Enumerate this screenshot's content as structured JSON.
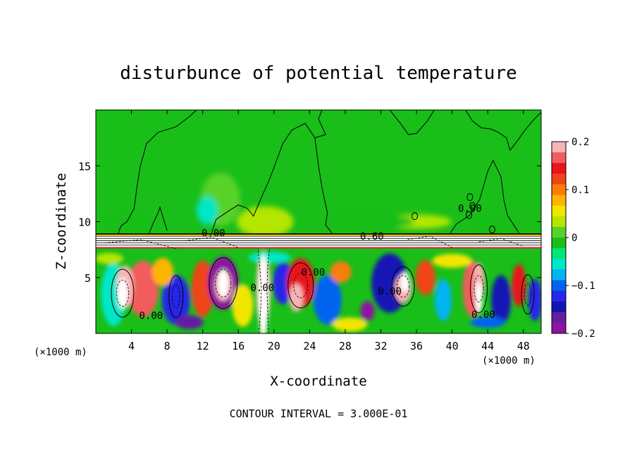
{
  "chart_data": {
    "type": "heatmap",
    "title": "disturbunce of potential temperature",
    "xlabel": "X-coordinate",
    "ylabel": "Z-coordinate",
    "x_unit_label": "(×1000 m)",
    "x_unit_label_right": "(×1000 m)",
    "footer": "CONTOUR INTERVAL = 3.000E-01",
    "xlim": [
      0,
      50
    ],
    "ylim": [
      0,
      20
    ],
    "x_ticks": [
      4,
      8,
      12,
      16,
      20,
      24,
      28,
      32,
      36,
      40,
      44,
      48
    ],
    "y_ticks": [
      5,
      10,
      15
    ],
    "colorbar": {
      "range": [
        -0.2,
        0.2
      ],
      "tick_labels": [
        "0.2",
        "0.1",
        "0",
        "−0.1",
        "−0.2"
      ],
      "tick_values": [
        0.2,
        0.1,
        0,
        -0.1,
        -0.2
      ],
      "colors": [
        "#f8b4b4",
        "#f35c5c",
        "#e8141e",
        "#f04414",
        "#fa7d0a",
        "#ffb400",
        "#f2e600",
        "#b4e600",
        "#58d228",
        "#19be19",
        "#00e678",
        "#00e6c8",
        "#00b4f0",
        "#0064f0",
        "#2828e6",
        "#1414b4",
        "#641ea0",
        "#8c14a0"
      ]
    },
    "inversion_layer_z": [
      7.6,
      8.9
    ],
    "contour_labels": [
      {
        "text": "0.00",
        "x": 13.2,
        "z": 9.0
      },
      {
        "text": "0.60",
        "x": 31.0,
        "z": 8.7
      },
      {
        "text": "0.00",
        "x": 24.4,
        "z": 5.5
      },
      {
        "text": "0.00",
        "x": 6.2,
        "z": 1.6
      },
      {
        "text": "0.00",
        "x": 18.7,
        "z": 4.1
      },
      {
        "text": "0.00",
        "x": 33.0,
        "z": 3.8
      },
      {
        "text": "0.00",
        "x": 43.5,
        "z": 1.7
      },
      {
        "text": "0.00",
        "x": 42.0,
        "z": 11.2
      }
    ],
    "grid": false
  }
}
